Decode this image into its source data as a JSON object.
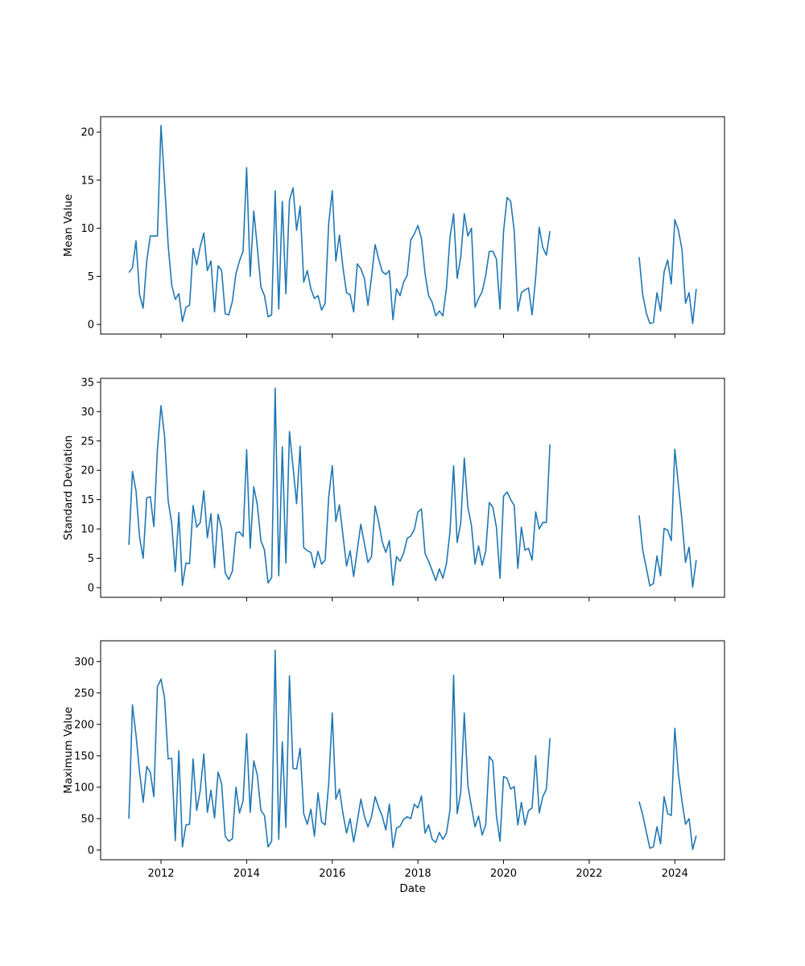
{
  "chart_data": [
    {
      "type": "line",
      "title": "",
      "xlabel": "",
      "ylabel": "Mean Value",
      "x_start": "2011-04",
      "x_step": "1 month",
      "xlim": [
        2010.59,
        2025.16
      ],
      "ylim": [
        -1.0,
        21.6
      ],
      "xticks": [
        2012,
        2014,
        2016,
        2018,
        2020,
        2022,
        2024
      ],
      "xtick_labels_visible": false,
      "yticks": [
        0,
        5,
        10,
        15,
        20
      ],
      "grid": false,
      "color": "#1f77b4",
      "series": [
        {
          "name": "Mean Value",
          "values": [
            5.4,
            5.9,
            8.7,
            3.1,
            1.7,
            6.6,
            9.2,
            9.2,
            9.2,
            20.7,
            14.7,
            8.3,
            4.1,
            2.6,
            3.2,
            0.3,
            1.8,
            2.0,
            7.9,
            6.2,
            8.1,
            9.5,
            5.6,
            6.6,
            1.3,
            6.1,
            5.6,
            1.1,
            1.0,
            2.4,
            5.3,
            6.6,
            7.6,
            16.3,
            5.0,
            11.8,
            8.0,
            3.9,
            3.0,
            0.8,
            1.0,
            13.9,
            1.6,
            12.8,
            3.2,
            12.9,
            14.2,
            9.8,
            12.3,
            4.4,
            5.6,
            3.7,
            2.7,
            3.0,
            1.5,
            2.2,
            10.5,
            13.9,
            6.6,
            9.3,
            5.9,
            3.3,
            3.1,
            1.3,
            6.3,
            5.8,
            4.8,
            2.0,
            4.9,
            8.3,
            6.8,
            5.5,
            5.2,
            5.6,
            0.5,
            3.7,
            3.0,
            4.4,
            5.1,
            8.8,
            9.4,
            10.3,
            8.9,
            5.3,
            3.0,
            2.3,
            0.9,
            1.4,
            0.9,
            3.8,
            9.1,
            11.5,
            4.8,
            7.0,
            11.5,
            9.2,
            10.0,
            1.8,
            2.7,
            3.4,
            5.1,
            7.6,
            7.6,
            6.8,
            1.6,
            9.7,
            13.2,
            12.8,
            9.7,
            1.4,
            3.3,
            3.6,
            3.8,
            1.0,
            4.9,
            10.1,
            8.0,
            7.2,
            9.7,
            null,
            null,
            null,
            null,
            null,
            null,
            null,
            null,
            null,
            null,
            null,
            null,
            null,
            null,
            null,
            null,
            null,
            null,
            null,
            null,
            null,
            null,
            null,
            null,
            7.0,
            3.1,
            1.2,
            0.1,
            0.2,
            3.3,
            1.4,
            5.5,
            6.7,
            4.2,
            10.9,
            9.8,
            7.8,
            2.2,
            3.3,
            0.1,
            3.7
          ]
        }
      ]
    },
    {
      "type": "line",
      "title": "",
      "xlabel": "",
      "ylabel": "Standard Deviation",
      "x_start": "2011-04",
      "x_step": "1 month",
      "xlim": [
        2010.59,
        2025.16
      ],
      "ylim": [
        -1.65,
        35.67
      ],
      "xticks": [
        2012,
        2014,
        2016,
        2018,
        2020,
        2022,
        2024
      ],
      "xtick_labels_visible": false,
      "yticks": [
        0,
        5,
        10,
        15,
        20,
        25,
        30,
        35
      ],
      "grid": false,
      "color": "#1f77b4",
      "series": [
        {
          "name": "Standard Deviation",
          "values": [
            7.3,
            19.8,
            16.5,
            8.6,
            5.0,
            15.3,
            15.5,
            10.4,
            23.6,
            31.0,
            25.8,
            14.8,
            11.0,
            2.7,
            12.8,
            0.4,
            4.2,
            4.1,
            14.0,
            10.3,
            11.1,
            16.5,
            8.5,
            12.6,
            3.4,
            12.5,
            10.0,
            2.5,
            1.4,
            2.8,
            9.3,
            9.5,
            8.7,
            23.5,
            6.7,
            17.2,
            14.1,
            8.0,
            6.4,
            0.8,
            1.7,
            34.0,
            2.0,
            24.0,
            4.2,
            26.6,
            20.6,
            14.3,
            24.1,
            6.8,
            6.3,
            6.0,
            3.4,
            6.2,
            4.0,
            4.7,
            15.4,
            20.8,
            11.3,
            14.1,
            8.9,
            3.7,
            6.3,
            1.9,
            6.4,
            10.8,
            7.5,
            4.3,
            5.3,
            13.9,
            11.2,
            7.8,
            6.0,
            8.0,
            0.4,
            5.3,
            4.5,
            5.9,
            8.4,
            8.8,
            9.9,
            12.9,
            13.4,
            5.8,
            4.5,
            2.9,
            1.2,
            3.2,
            1.6,
            4.1,
            9.6,
            20.8,
            7.7,
            11.0,
            22.1,
            13.7,
            10.6,
            4.0,
            7.1,
            3.8,
            6.2,
            14.5,
            13.7,
            10.3,
            1.6,
            15.6,
            16.3,
            15.0,
            14.0,
            3.3,
            10.3,
            6.4,
            6.7,
            4.7,
            12.9,
            10.0,
            11.1,
            11.1,
            24.4,
            null,
            null,
            null,
            null,
            null,
            null,
            null,
            null,
            null,
            null,
            null,
            null,
            null,
            null,
            null,
            null,
            null,
            null,
            null,
            null,
            null,
            null,
            null,
            null,
            12.3,
            6.4,
            3.4,
            0.3,
            0.7,
            5.4,
            2.0,
            10.1,
            9.8,
            8.0,
            23.6,
            17.5,
            11.5,
            4.3,
            6.9,
            0.1,
            4.7
          ]
        }
      ]
    },
    {
      "type": "line",
      "title": "",
      "xlabel": "Date",
      "ylabel": "Maximum Value",
      "x_start": "2011-04",
      "x_step": "1 month",
      "xlim": [
        2010.59,
        2025.16
      ],
      "ylim": [
        -15.4,
        333
      ],
      "xticks": [
        2012,
        2014,
        2016,
        2018,
        2020,
        2022,
        2024
      ],
      "xtick_labels_visible": true,
      "yticks": [
        0,
        50,
        100,
        150,
        200,
        250,
        300
      ],
      "grid": false,
      "color": "#1f77b4",
      "series": [
        {
          "name": "Maximum Value",
          "values": [
            50,
            231,
            183,
            124,
            76,
            133,
            124,
            85,
            260,
            272,
            242,
            145,
            146,
            15,
            158,
            5,
            40,
            41,
            145,
            63,
            95,
            153,
            60,
            95,
            51,
            124,
            105,
            22,
            14,
            18,
            100,
            59,
            78,
            185,
            60,
            142,
            119,
            63,
            55,
            5,
            14,
            318,
            17,
            172,
            36,
            277,
            130,
            129,
            162,
            58,
            41,
            65,
            22,
            91,
            45,
            40,
            106,
            218,
            81,
            97,
            58,
            27,
            50,
            13,
            45,
            81,
            54,
            37,
            53,
            85,
            68,
            54,
            32,
            73,
            4,
            35,
            38,
            49,
            53,
            50,
            73,
            67,
            86,
            27,
            40,
            17,
            12,
            28,
            17,
            27,
            64,
            278,
            58,
            92,
            218,
            103,
            69,
            37,
            54,
            24,
            40,
            149,
            141,
            55,
            14,
            117,
            114,
            97,
            101,
            40,
            76,
            40,
            63,
            67,
            150,
            59,
            85,
            97,
            178,
            null,
            null,
            null,
            null,
            null,
            null,
            null,
            null,
            null,
            null,
            null,
            null,
            null,
            null,
            null,
            null,
            null,
            null,
            null,
            null,
            null,
            null,
            null,
            null,
            77,
            56,
            29,
            3,
            5,
            37,
            10,
            85,
            58,
            55,
            194,
            121,
            78,
            41,
            50,
            1,
            23
          ]
        }
      ]
    }
  ]
}
